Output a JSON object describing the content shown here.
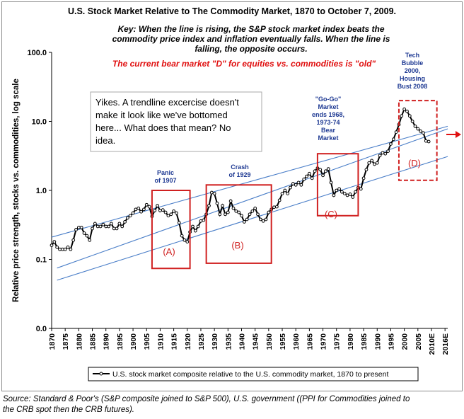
{
  "chart_data": {
    "type": "line",
    "title": "U.S. Stock Market Relative to The Commodity Market, 1870 to October 7, 2009.",
    "key_lines": [
      "Key: When the line is rising, the S&P stock market index beats the",
      "commodity price index and inflation eventually falls. When the line is",
      "falling, the opposite occurs."
    ],
    "key_red": "The current bear market \"D\" for equities vs. commodities is \"old\"",
    "ylabel": "Relative price strength, stocks vs. commodities, log scale",
    "xlabel": "",
    "y_scale": "log",
    "y_ticks": [
      "100.0",
      "10.0",
      "1.0",
      "0.1",
      "0.0"
    ],
    "x_ticks": [
      "1870",
      "1875",
      "1880",
      "1885",
      "1890",
      "1895",
      "1900",
      "1905",
      "1910",
      "1915",
      "1920",
      "1925",
      "1930",
      "1935",
      "1940",
      "1945",
      "1950",
      "1955",
      "1960",
      "1965",
      "1970",
      "1975",
      "1980",
      "1985",
      "1990",
      "1995",
      "2000",
      "2005",
      "2010E",
      "2016E"
    ],
    "xlim": [
      1870,
      2016
    ],
    "legend": "U.S. stock market composite relative to the U.S. commodity market, 1870 to present",
    "legend_position": "bottom",
    "grid": false,
    "colors": {
      "series": "#000000",
      "trendline": "#4a7ec8",
      "box": "#d02020",
      "annotation_blue": "#1f3a93",
      "key_red": "#e01010",
      "arrow": "#e01010"
    },
    "series": [
      {
        "name": "U.S. stock market composite relative to the U.S. commodity market, 1870 to present",
        "x": [
          1870,
          1871,
          1872,
          1873,
          1874,
          1875,
          1876,
          1877,
          1878,
          1879,
          1880,
          1881,
          1882,
          1883,
          1884,
          1885,
          1886,
          1887,
          1888,
          1889,
          1890,
          1891,
          1892,
          1893,
          1894,
          1895,
          1896,
          1897,
          1898,
          1899,
          1900,
          1901,
          1902,
          1903,
          1904,
          1905,
          1906,
          1907,
          1908,
          1909,
          1910,
          1911,
          1912,
          1913,
          1914,
          1915,
          1916,
          1917,
          1918,
          1919,
          1920,
          1921,
          1922,
          1923,
          1924,
          1925,
          1926,
          1927,
          1928,
          1929,
          1930,
          1931,
          1932,
          1933,
          1934,
          1935,
          1936,
          1937,
          1938,
          1939,
          1940,
          1941,
          1942,
          1943,
          1944,
          1945,
          1946,
          1947,
          1948,
          1949,
          1950,
          1951,
          1952,
          1953,
          1954,
          1955,
          1956,
          1957,
          1958,
          1959,
          1960,
          1961,
          1962,
          1963,
          1964,
          1965,
          1966,
          1967,
          1968,
          1969,
          1970,
          1971,
          1972,
          1973,
          1974,
          1975,
          1976,
          1977,
          1978,
          1979,
          1980,
          1981,
          1982,
          1983,
          1984,
          1985,
          1986,
          1987,
          1988,
          1989,
          1990,
          1991,
          1992,
          1993,
          1994,
          1995,
          1996,
          1997,
          1998,
          1999,
          2000,
          2001,
          2002,
          2003,
          2004,
          2005,
          2006,
          2007,
          2008,
          2009
        ],
        "y": [
          0.16,
          0.18,
          0.15,
          0.14,
          0.14,
          0.14,
          0.15,
          0.14,
          0.19,
          0.27,
          0.29,
          0.29,
          0.24,
          0.22,
          0.19,
          0.28,
          0.33,
          0.3,
          0.3,
          0.32,
          0.3,
          0.3,
          0.33,
          0.28,
          0.28,
          0.33,
          0.3,
          0.35,
          0.4,
          0.43,
          0.47,
          0.53,
          0.55,
          0.49,
          0.53,
          0.62,
          0.58,
          0.42,
          0.51,
          0.6,
          0.51,
          0.52,
          0.48,
          0.43,
          0.45,
          0.5,
          0.47,
          0.34,
          0.22,
          0.19,
          0.18,
          0.25,
          0.3,
          0.26,
          0.3,
          0.36,
          0.37,
          0.45,
          0.6,
          0.93,
          0.9,
          0.65,
          0.45,
          0.6,
          0.45,
          0.48,
          0.7,
          0.55,
          0.5,
          0.48,
          0.43,
          0.35,
          0.38,
          0.45,
          0.5,
          0.55,
          0.45,
          0.38,
          0.36,
          0.38,
          0.48,
          0.53,
          0.57,
          0.58,
          0.72,
          0.9,
          1.0,
          0.9,
          1.1,
          1.25,
          1.2,
          1.3,
          1.2,
          1.45,
          1.6,
          1.75,
          1.5,
          1.9,
          2.1,
          2.0,
          1.65,
          1.9,
          2.05,
          1.3,
          0.85,
          1.0,
          1.05,
          0.95,
          0.9,
          0.85,
          0.88,
          0.8,
          0.95,
          1.1,
          1.05,
          1.5,
          2.0,
          2.5,
          2.7,
          2.4,
          2.5,
          3.2,
          3.5,
          3.4,
          3.7,
          4.7,
          5.5,
          7.0,
          9.0,
          12.0,
          15.0,
          14.0,
          12.0,
          10.0,
          8.5,
          7.8,
          7.2,
          6.8,
          5.2,
          5.1
        ]
      }
    ],
    "trendlines": [
      {
        "from": [
          1870,
          0.21
        ],
        "to": [
          2016,
          8.5
        ]
      },
      {
        "from": [
          1872,
          0.075
        ],
        "to": [
          2016,
          7.8
        ]
      },
      {
        "from": [
          1872,
          0.05
        ],
        "to": [
          2016,
          3.1
        ]
      }
    ],
    "boxes": [
      {
        "label": "(A)",
        "x0": 1907,
        "x1": 1921,
        "y0": 0.074,
        "y1": 1.0
      },
      {
        "label": "(B)",
        "x0": 1927,
        "x1": 1951,
        "y0": 0.088,
        "y1": 1.2
      },
      {
        "label": "(C)",
        "x0": 1968,
        "x1": 1983,
        "y0": 0.43,
        "y1": 3.4
      },
      {
        "label": "(D)",
        "x0": 1998,
        "x1": 2012,
        "y0": 1.4,
        "y1": 20
      }
    ],
    "annotations": [
      {
        "id": "panic",
        "lines": [
          "Panic",
          "of 1907"
        ]
      },
      {
        "id": "crash",
        "lines": [
          "Crash",
          "of 1929"
        ]
      },
      {
        "id": "gogo",
        "lines": [
          "\"Go-Go\"",
          "Market",
          "ends 1968,",
          "1973-74",
          "Bear",
          "Market"
        ]
      },
      {
        "id": "tech",
        "lines": [
          "Tech",
          "Bubble",
          "2000,",
          "Housing",
          "Bust 2008"
        ]
      }
    ],
    "textbox_lines": [
      "Yikes.  A trendline excercise doesn't",
      "make it look like we've bottomed",
      "here...  What does that mean?  No",
      "idea."
    ]
  },
  "source_lines": [
    "Source: Standard & Poor's (S&P composite joined to S&P 500), U.S. government ((PPI for Commodities joined to",
    "the CRB spot then the CRB futures)."
  ]
}
